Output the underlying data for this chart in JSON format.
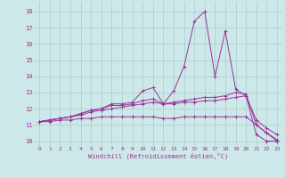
{
  "xlabel": "Windchill (Refroidissement éolien,°C)",
  "background_color": "#cce8e8",
  "grid_color": "#aacccc",
  "line_color": "#993399",
  "x_ticks": [
    0,
    1,
    2,
    3,
    4,
    5,
    6,
    7,
    8,
    9,
    10,
    11,
    12,
    13,
    14,
    15,
    16,
    17,
    18,
    19,
    20,
    21,
    22,
    23
  ],
  "y_ticks": [
    10,
    11,
    12,
    13,
    14,
    15,
    16,
    17,
    18
  ],
  "xlim": [
    -0.5,
    23.5
  ],
  "ylim": [
    9.7,
    18.6
  ],
  "lines": [
    {
      "x": [
        0,
        1,
        2,
        3,
        4,
        5,
        6,
        7,
        8,
        9,
        10,
        11,
        12,
        13,
        14,
        15,
        16,
        17,
        18,
        19,
        20,
        21,
        22,
        23
      ],
      "y": [
        11.2,
        11.3,
        11.4,
        11.5,
        11.7,
        11.9,
        12.0,
        12.3,
        12.3,
        12.4,
        13.1,
        13.3,
        12.3,
        13.1,
        14.6,
        17.4,
        18.0,
        14.0,
        16.8,
        13.2,
        12.8,
        10.4,
        10.0,
        10.0
      ]
    },
    {
      "x": [
        0,
        1,
        2,
        3,
        4,
        5,
        6,
        7,
        8,
        9,
        10,
        11,
        12,
        13,
        14,
        15,
        16,
        17,
        18,
        19,
        20,
        21,
        22,
        23
      ],
      "y": [
        11.2,
        11.3,
        11.4,
        11.5,
        11.7,
        11.9,
        12.0,
        12.2,
        12.2,
        12.3,
        12.5,
        12.6,
        12.3,
        12.4,
        12.5,
        12.6,
        12.7,
        12.7,
        12.8,
        13.0,
        12.9,
        11.0,
        10.5,
        10.1
      ]
    },
    {
      "x": [
        0,
        1,
        2,
        3,
        4,
        5,
        6,
        7,
        8,
        9,
        10,
        11,
        12,
        13,
        14,
        15,
        16,
        17,
        18,
        19,
        20,
        21,
        22,
        23
      ],
      "y": [
        11.2,
        11.3,
        11.4,
        11.5,
        11.6,
        11.8,
        11.9,
        12.0,
        12.1,
        12.2,
        12.3,
        12.4,
        12.3,
        12.3,
        12.4,
        12.4,
        12.5,
        12.5,
        12.6,
        12.7,
        12.8,
        11.3,
        10.8,
        10.4
      ]
    },
    {
      "x": [
        0,
        1,
        2,
        3,
        4,
        5,
        6,
        7,
        8,
        9,
        10,
        11,
        12,
        13,
        14,
        15,
        16,
        17,
        18,
        19,
        20,
        21,
        22,
        23
      ],
      "y": [
        11.2,
        11.2,
        11.3,
        11.3,
        11.4,
        11.4,
        11.5,
        11.5,
        11.5,
        11.5,
        11.5,
        11.5,
        11.4,
        11.4,
        11.5,
        11.5,
        11.5,
        11.5,
        11.5,
        11.5,
        11.5,
        11.0,
        10.5,
        10.0
      ]
    }
  ]
}
